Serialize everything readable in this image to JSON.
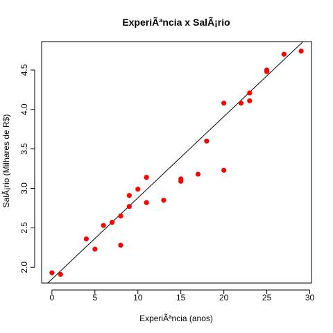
{
  "chart_data": {
    "type": "scatter",
    "title": "ExperiÃªncia x SalÃ¡rio",
    "xlabel": "ExperiÃªncia (anos)",
    "ylabel": "SalÃ¡rio (Milhares de R$)",
    "xlim": [
      -1.2,
      30.2
    ],
    "ylim": [
      1.8,
      4.86
    ],
    "xticks": [
      0,
      5,
      10,
      15,
      20,
      25,
      30
    ],
    "yticks": [
      2.0,
      2.5,
      3.0,
      3.5,
      4.0,
      4.5
    ],
    "ytick_labels": [
      "2.0",
      "2.5",
      "3.0",
      "3.5",
      "4.0",
      "4.5"
    ],
    "grid": false,
    "legend": "none",
    "point_color": "#ff0000",
    "line_color": "#000000",
    "points": [
      {
        "x": 0,
        "y": 1.93
      },
      {
        "x": 1,
        "y": 1.91
      },
      {
        "x": 4,
        "y": 2.36
      },
      {
        "x": 5,
        "y": 2.23
      },
      {
        "x": 6,
        "y": 2.53
      },
      {
        "x": 7,
        "y": 2.57
      },
      {
        "x": 8,
        "y": 2.65
      },
      {
        "x": 8,
        "y": 2.28
      },
      {
        "x": 9,
        "y": 2.77
      },
      {
        "x": 9,
        "y": 2.91
      },
      {
        "x": 10,
        "y": 2.99
      },
      {
        "x": 11,
        "y": 3.14
      },
      {
        "x": 11,
        "y": 2.82
      },
      {
        "x": 13,
        "y": 2.85
      },
      {
        "x": 15,
        "y": 3.12
      },
      {
        "x": 15,
        "y": 3.09
      },
      {
        "x": 17,
        "y": 3.18
      },
      {
        "x": 18,
        "y": 3.6
      },
      {
        "x": 20,
        "y": 4.08
      },
      {
        "x": 20,
        "y": 3.23
      },
      {
        "x": 22,
        "y": 4.08
      },
      {
        "x": 23,
        "y": 4.21
      },
      {
        "x": 23,
        "y": 4.11
      },
      {
        "x": 25,
        "y": 4.48
      },
      {
        "x": 25,
        "y": 4.5
      },
      {
        "x": 27,
        "y": 4.7
      },
      {
        "x": 29,
        "y": 4.74
      }
    ],
    "regression_line": {
      "intercept": 1.85,
      "slope": 0.103
    }
  }
}
